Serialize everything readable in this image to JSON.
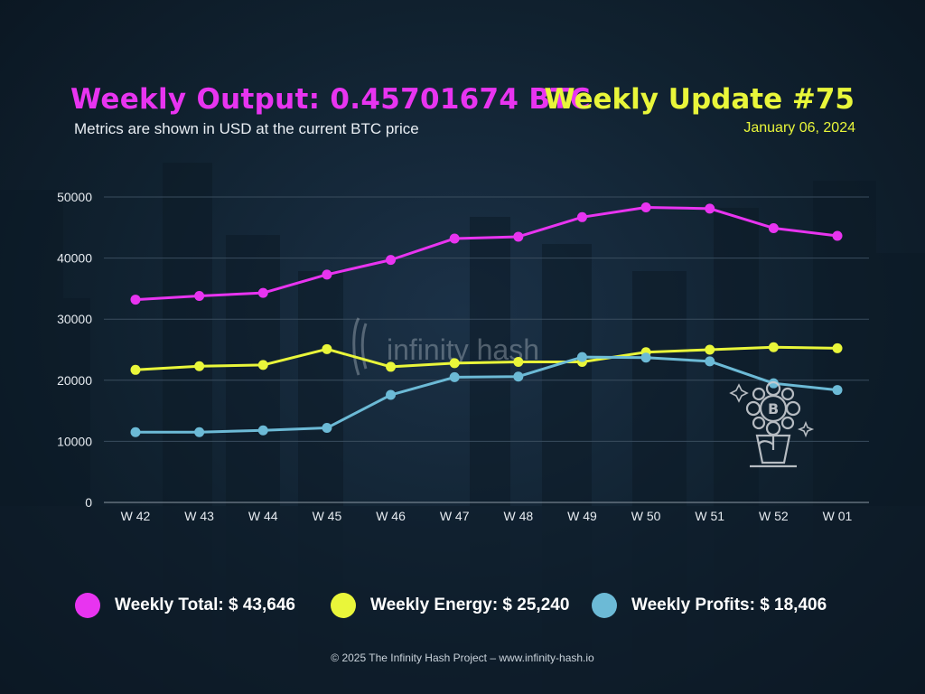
{
  "header": {
    "title": "Weekly Output: 0.45701674 BTC",
    "subtitle": "Metrics are shown in USD at the current BTC price",
    "update_title": "Weekly Update #75",
    "date": "January 06, 2024"
  },
  "watermark": {
    "text": "infinity hash"
  },
  "chart_data": {
    "type": "line",
    "categories": [
      "W 42",
      "W 43",
      "W 44",
      "W 45",
      "W 46",
      "W 47",
      "W 48",
      "W 49",
      "W 50",
      "W 51",
      "W 52",
      "W 01"
    ],
    "series": [
      {
        "name": "Weekly Total",
        "color": "#e834f0",
        "values": [
          33200,
          33800,
          34300,
          37300,
          39700,
          43200,
          43500,
          46700,
          48300,
          48100,
          44900,
          43646
        ]
      },
      {
        "name": "Weekly Energy",
        "color": "#e9f63a",
        "values": [
          21700,
          22300,
          22500,
          25100,
          22200,
          22800,
          23000,
          23000,
          24600,
          25000,
          25400,
          25240
        ]
      },
      {
        "name": "Weekly Profits",
        "color": "#6cbad6",
        "values": [
          11500,
          11500,
          11800,
          12200,
          17600,
          20500,
          20600,
          23800,
          23700,
          23100,
          19500,
          18406
        ]
      }
    ],
    "yticks": [
      0,
      10000,
      20000,
      30000,
      40000,
      50000
    ],
    "ylim": [
      0,
      50000
    ],
    "grid": true,
    "legend_position": "bottom"
  },
  "legend": [
    {
      "label": "Weekly Total: $ 43,646",
      "color": "#e834f0"
    },
    {
      "label": "Weekly Energy: $ 25,240",
      "color": "#e9f63a"
    },
    {
      "label": "Weekly Profits: $ 18,406",
      "color": "#6cbad6"
    }
  ],
  "footer": {
    "text": "© 2025 The Infinity Hash Project – www.infinity-hash.io"
  },
  "icons": {
    "plant": "bitcoin-plant-icon"
  }
}
